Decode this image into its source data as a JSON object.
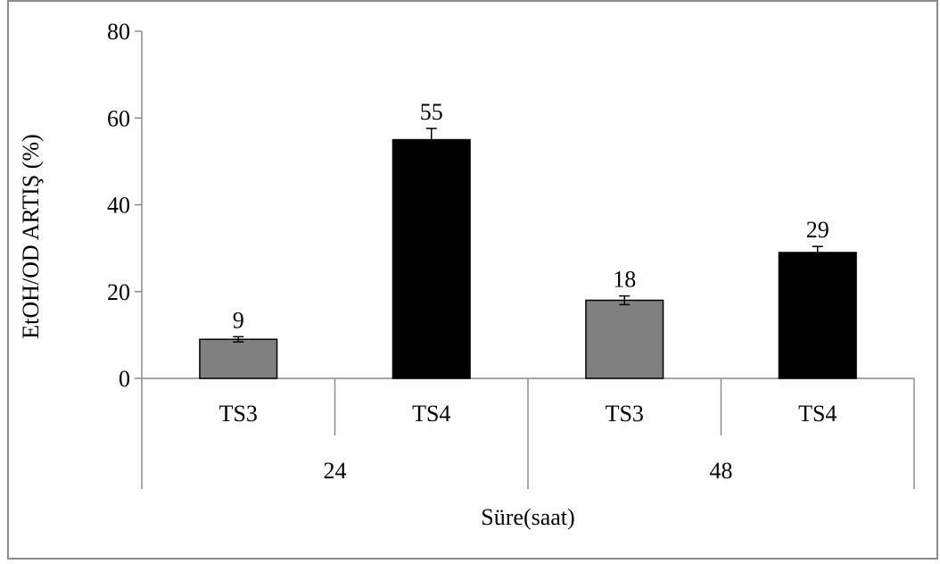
{
  "chart_data": {
    "type": "bar",
    "title": "",
    "ylabel": "EtOH/OD ARTIŞ (%)",
    "xlabel": "Süre(saat)",
    "ylim": [
      0,
      80
    ],
    "y_ticks": [
      "0",
      "20",
      "40",
      "60",
      "80"
    ],
    "grid": false,
    "legend": "none",
    "groups": [
      {
        "label": "24",
        "bars": [
          {
            "category": "TS3",
            "value": 9,
            "value_label": "9",
            "error": 0.6,
            "color": "#808080"
          },
          {
            "category": "TS4",
            "value": 55,
            "value_label": "55",
            "error": 2.6,
            "color": "#000000"
          }
        ]
      },
      {
        "label": "48",
        "bars": [
          {
            "category": "TS3",
            "value": 18,
            "value_label": "18",
            "error": 1.0,
            "color": "#808080"
          },
          {
            "category": "TS4",
            "value": 29,
            "value_label": "29",
            "error": 1.4,
            "color": "#000000"
          }
        ]
      }
    ]
  }
}
